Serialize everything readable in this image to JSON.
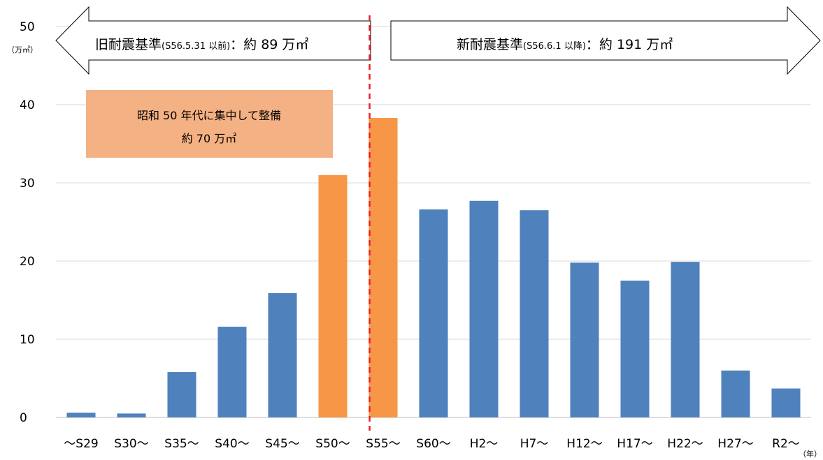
{
  "chart_data": {
    "type": "bar",
    "categories": [
      "～S29",
      "S30～",
      "S35～",
      "S40～",
      "S45～",
      "S50～",
      "S55～",
      "S60～",
      "H2～",
      "H7～",
      "H12～",
      "H17～",
      "H22～",
      "H27～",
      "R2～"
    ],
    "values": [
      0.6,
      0.5,
      5.8,
      11.6,
      15.9,
      31.0,
      38.3,
      26.6,
      27.7,
      26.5,
      19.8,
      17.5,
      19.9,
      6.0,
      3.7
    ],
    "highlight": [
      false,
      false,
      false,
      false,
      false,
      true,
      true,
      false,
      false,
      false,
      false,
      false,
      false,
      false,
      false
    ],
    "ylim": [
      0,
      50
    ],
    "yticks": [
      0,
      10,
      20,
      30,
      40,
      50
    ],
    "ylabel_unit": "（万㎡）",
    "xlabel_unit": "（年）",
    "grid": true,
    "divider_after_category": "S50～",
    "colors": {
      "bar": "#4f81bd",
      "highlight": "#f79646",
      "divider": "#e8202a",
      "grid": "#d9d9d9",
      "annotation_bg": "#f4b183"
    },
    "annotations": {
      "old_standard": {
        "main": "旧耐震基準",
        "paren": "(S56.5.31 以前)",
        "value": "：約 89 万㎡"
      },
      "new_standard": {
        "main": "新耐震基準",
        "paren": "(S56.6.1 以降)",
        "value": "：約 191 万㎡"
      },
      "focus_box": {
        "line1": "昭和 50 年代に集中して整備",
        "line2": "約 70 万㎡"
      }
    }
  }
}
